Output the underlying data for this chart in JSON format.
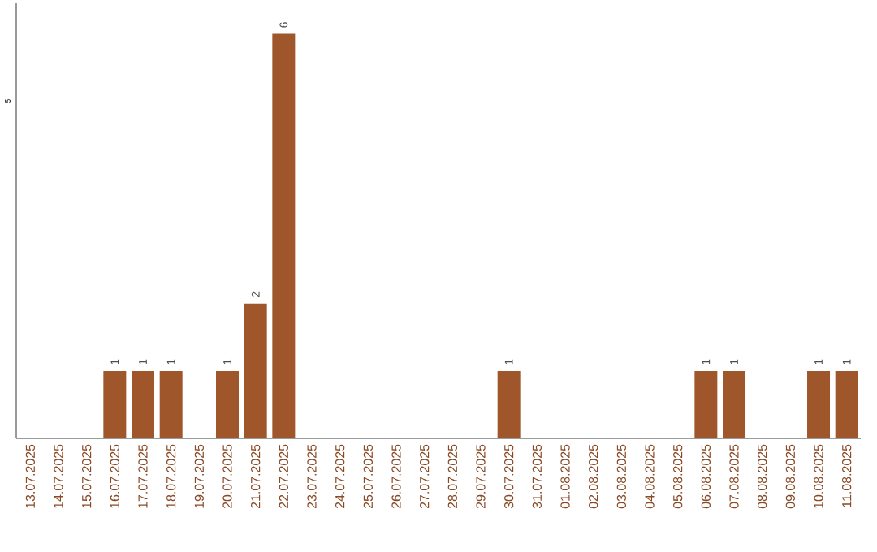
{
  "chart_data": {
    "type": "bar",
    "categories": [
      "13.07.2025",
      "14.07.2025",
      "15.07.2025",
      "16.07.2025",
      "17.07.2025",
      "18.07.2025",
      "19.07.2025",
      "20.07.2025",
      "21.07.2025",
      "22.07.2025",
      "23.07.2025",
      "24.07.2025",
      "25.07.2025",
      "26.07.2025",
      "27.07.2025",
      "28.07.2025",
      "29.07.2025",
      "30.07.2025",
      "31.07.2025",
      "01.08.2025",
      "02.08.2025",
      "03.08.2025",
      "04.08.2025",
      "05.08.2025",
      "06.08.2025",
      "07.08.2025",
      "08.08.2025",
      "09.08.2025",
      "10.08.2025",
      "11.08.2025"
    ],
    "values": [
      0,
      0,
      0,
      1,
      1,
      1,
      0,
      1,
      2,
      6,
      0,
      0,
      0,
      0,
      0,
      0,
      0,
      1,
      0,
      0,
      0,
      0,
      0,
      0,
      1,
      1,
      0,
      0,
      1,
      1
    ],
    "value_labels": [
      null,
      null,
      null,
      "1",
      "1",
      "1",
      null,
      "1",
      "2",
      "6",
      null,
      null,
      null,
      null,
      null,
      null,
      null,
      "1",
      null,
      null,
      null,
      null,
      null,
      null,
      "1",
      "1",
      null,
      null,
      "1",
      "1"
    ],
    "color": "#a0562b",
    "ylim": [
      0,
      6.45
    ],
    "yticks": [
      5
    ],
    "grid": "y"
  }
}
